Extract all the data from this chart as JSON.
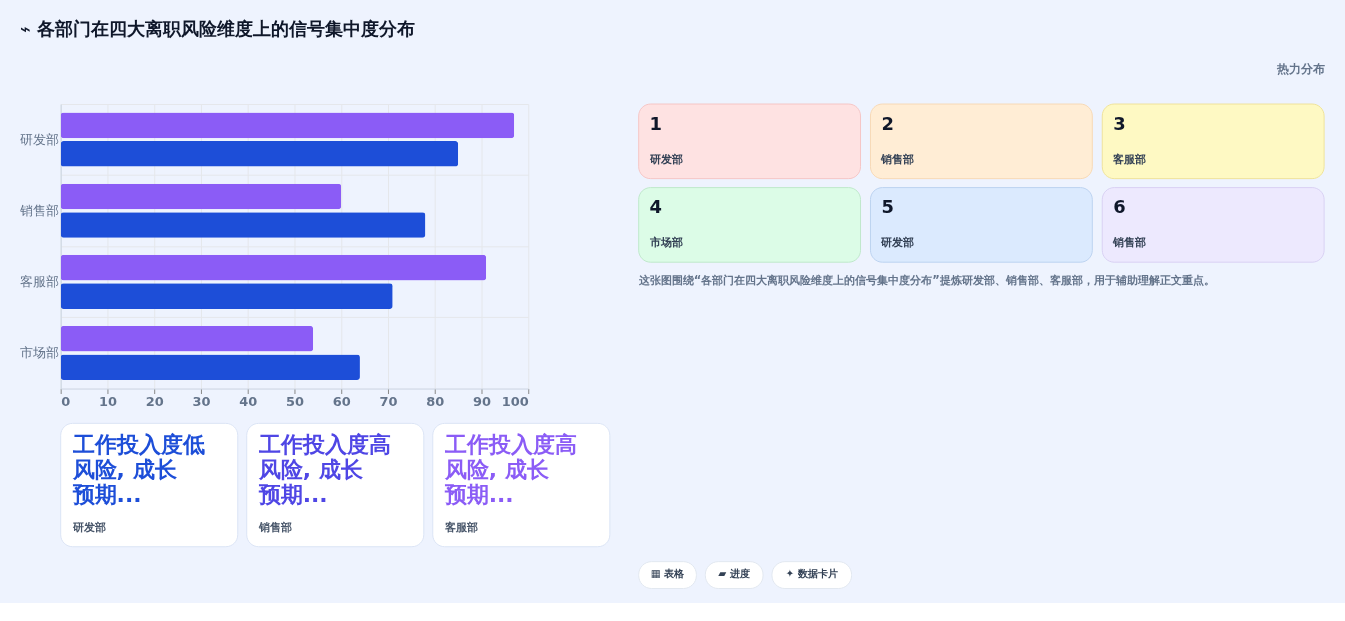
{
  "chart_data": {
    "type": "bar",
    "orientation": "horizontal",
    "title": "⌁ 各部门在四大离职风险维度上的信号集中度分布",
    "categories": [
      "研发部",
      "销售部",
      "客服部",
      "市场部"
    ],
    "series": [
      {
        "color": "#8b5cf6",
        "values": [
          97,
          60,
          91,
          54
        ]
      },
      {
        "color": "#1d4ed8",
        "values": [
          85,
          78,
          71,
          64
        ]
      }
    ],
    "xlim": [
      0,
      100
    ],
    "xticks": [
      0,
      10,
      20,
      30,
      40,
      50,
      60,
      70,
      80,
      90,
      100
    ],
    "grid": true,
    "legend": false,
    "annotations": [
      "热力分布",
      "1",
      "研发部",
      "2",
      "销售部",
      "3",
      "客服部",
      "4",
      "市场部",
      "5",
      "研发部",
      "6",
      "销售部",
      "这张图围绕“各部门在四大离职风险维度上的信号集中度分布”提炼研发部、销售部、客服部，用于辅助理解正文重点。",
      "工作投入度低风险, 成长预期...",
      "研发部",
      "工作投入度高风险, 成长预期...",
      "销售部",
      "工作投入度高风险, 成长预期...",
      "客服部",
      "▦ 表格",
      "▰ 进度",
      "✦ 数据卡片"
    ]
  }
}
